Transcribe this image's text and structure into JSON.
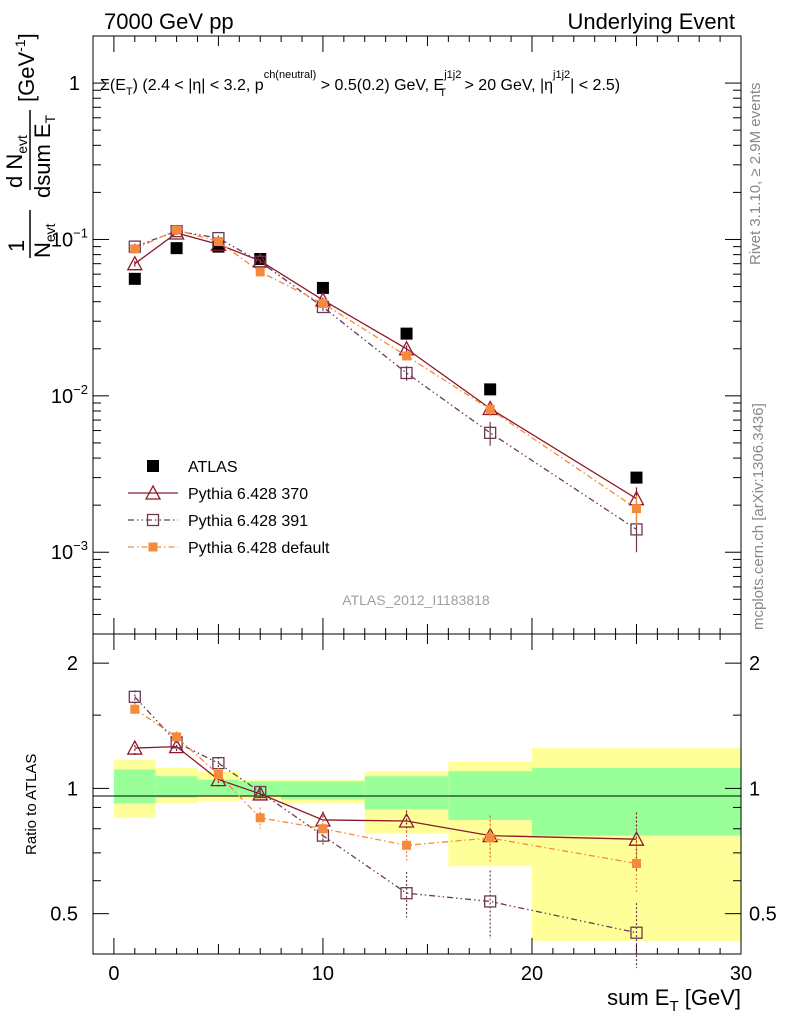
{
  "header": {
    "left": "7000 GeV pp",
    "right": "Underlying Event"
  },
  "side": {
    "rivet": "Rivet 3.1.10, ≥ 2.9M events",
    "mcplots": "mcplots.cern.ch [arXiv:1306.3436]"
  },
  "cut_label": {
    "sigma": "Σ(E",
    "sigma_sub": "T",
    "part1": ") (2.4 < |η| < 3.2, p",
    "pt_sup": "ch(neutral)",
    "part2": " > 0.5(0.2) GeV, E",
    "et_sup": "j1j2",
    "et_sub": "T",
    "part3": " > 20 GeV, |η",
    "eta_sup": "j1j2",
    "part4": "| < 2.5)"
  },
  "analysis_id": "ATLAS_2012_I1183818",
  "axes": {
    "ylabel_main": {
      "one": "1",
      "n": "N",
      "n_sub": "evt",
      "dn": "d N",
      "dn_sub": "evt",
      "dsum": "dsum E",
      "dsum_sub": "T",
      "unit": "[GeV",
      "unit_sup": "-1",
      "unit_end": "]"
    },
    "ylabel_ratio": "Ratio to ATLAS",
    "xlabel": "sum E",
    "xlabel_sub": "T",
    "xlabel_unit": " [GeV]",
    "main_ticks": [
      {
        "label": "1",
        "sup": ""
      },
      {
        "label": "10",
        "sup": "−1"
      },
      {
        "label": "10",
        "sup": "−2"
      },
      {
        "label": "10",
        "sup": "−3"
      }
    ],
    "ratio_ticks": [
      "2",
      "1",
      "0.5"
    ],
    "x_ticks": [
      "0",
      "10",
      "20",
      "30"
    ]
  },
  "colors": {
    "atlas": "#000000",
    "p370": "#8b1a2b",
    "p391": "#6b3a52",
    "pdef": "#f58a3c",
    "band_inner": "#99ff99",
    "band_outer": "#ffff99"
  },
  "chart_data": {
    "type": "scatter",
    "xlim": [
      -1,
      30
    ],
    "ylim_main": [
      0.0003,
      2.0
    ],
    "ylim_ratio": [
      0.4,
      2.35
    ],
    "bins": [
      [
        0,
        2
      ],
      [
        2,
        4
      ],
      [
        4,
        6
      ],
      [
        6,
        8
      ],
      [
        8,
        12
      ],
      [
        12,
        16
      ],
      [
        16,
        20
      ],
      [
        20,
        30
      ]
    ],
    "x": [
      1,
      3,
      5,
      7,
      10,
      14,
      18,
      25
    ],
    "series": [
      {
        "name": "ATLAS",
        "key": "atlas",
        "marker": "filled-square",
        "line": "none",
        "values": [
          0.056,
          0.088,
          0.09,
          0.075,
          0.049,
          0.025,
          0.011,
          0.003
        ]
      },
      {
        "name": "Pythia 6.428 370",
        "key": "p370",
        "marker": "open-triangle",
        "line": "solid",
        "values": [
          0.07,
          0.11,
          0.093,
          0.073,
          0.041,
          0.02,
          0.0083,
          0.0022
        ],
        "errors": [
          0.003,
          0.003,
          0.003,
          0.002,
          0.0015,
          0.001,
          0.0008,
          0.0004
        ]
      },
      {
        "name": "Pythia 6.428 391",
        "key": "p391",
        "marker": "open-square",
        "line": "dashdotdot",
        "values": [
          0.09,
          0.113,
          0.102,
          0.072,
          0.037,
          0.014,
          0.0058,
          0.0014
        ],
        "errors": [
          0.004,
          0.004,
          0.004,
          0.003,
          0.002,
          0.0015,
          0.001,
          0.0004
        ]
      },
      {
        "name": "Pythia 6.428 default",
        "key": "pdef",
        "marker": "filled-small-square",
        "line": "dashdot",
        "values": [
          0.087,
          0.115,
          0.097,
          0.062,
          0.039,
          0.018,
          0.0082,
          0.0019
        ],
        "errors": [
          0.003,
          0.003,
          0.003,
          0.002,
          0.0015,
          0.001,
          0.0008,
          0.0004
        ]
      }
    ],
    "ratios": {
      "p370": {
        "values": [
          1.25,
          1.26,
          1.05,
          0.97,
          0.84,
          0.835,
          0.77,
          0.755
        ],
        "errors": [
          0.05,
          0.04,
          0.04,
          0.03,
          0.04,
          0.05,
          0.09,
          0.12
        ]
      },
      "p391": {
        "values": [
          1.66,
          1.29,
          1.15,
          0.98,
          0.77,
          0.56,
          0.535,
          0.45
        ],
        "errors": [
          0.06,
          0.04,
          0.04,
          0.03,
          0.04,
          0.07,
          0.1,
          0.08
        ]
      },
      "pdef": {
        "values": [
          1.55,
          1.33,
          1.08,
          0.85,
          0.8,
          0.73,
          0.76,
          0.66
        ],
        "errors": [
          0.05,
          0.04,
          0.04,
          0.05,
          0.04,
          0.06,
          0.1,
          0.1
        ]
      }
    },
    "bands": {
      "inner": [
        [
          0.92,
          1.11
        ],
        [
          0.95,
          1.07
        ],
        [
          0.96,
          1.05
        ],
        [
          0.96,
          1.04
        ],
        [
          0.94,
          1.04
        ],
        [
          0.89,
          1.07
        ],
        [
          0.84,
          1.1
        ],
        [
          0.77,
          1.12
        ]
      ],
      "outer": [
        [
          0.85,
          1.17
        ],
        [
          0.92,
          1.12
        ],
        [
          0.93,
          1.1
        ],
        [
          0.94,
          1.05
        ],
        [
          0.92,
          1.05
        ],
        [
          0.78,
          1.1
        ],
        [
          0.65,
          1.16
        ],
        [
          0.43,
          1.25
        ]
      ]
    },
    "legend_position": "middle-left"
  }
}
